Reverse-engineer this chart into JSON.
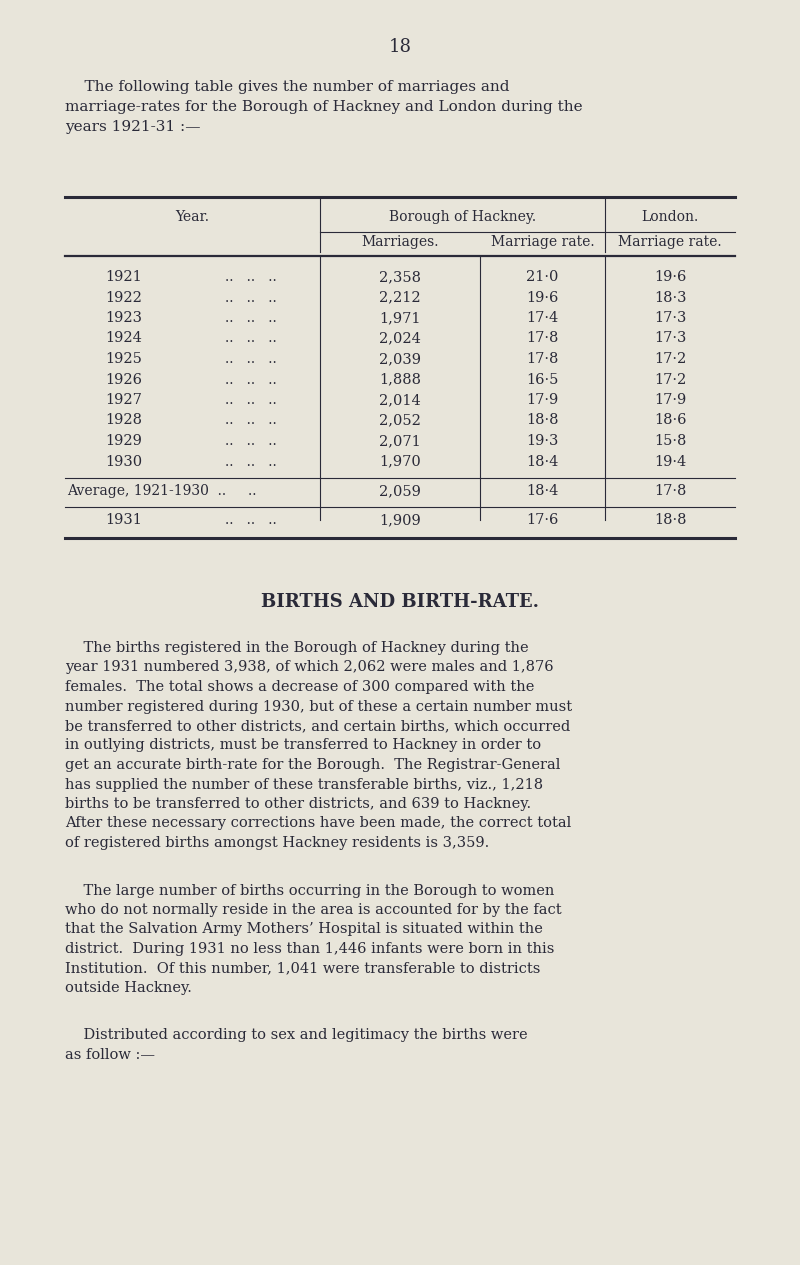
{
  "page_number": "18",
  "bg_color": "#e8e5da",
  "text_color": "#2a2a38",
  "intro_line1": "    The following table gives the number of marriages and",
  "intro_line2": "marriage-rates for the Borough of Hackney and London during the",
  "intro_line3": "years 1921-31 :—",
  "table_data": [
    [
      "1921",
      "2,358",
      "21·0",
      "19·6"
    ],
    [
      "1922",
      "2,212",
      "19·6",
      "18·3"
    ],
    [
      "1923",
      "1,971",
      "17·4",
      "17·3"
    ],
    [
      "1924",
      "2,024",
      "17·8",
      "17·3"
    ],
    [
      "1925",
      "2,039",
      "17·8",
      "17·2"
    ],
    [
      "1926",
      "1,888",
      "16·5",
      "17·2"
    ],
    [
      "1927",
      "2,014",
      "17·9",
      "17·9"
    ],
    [
      "1928",
      "2,052",
      "18·8",
      "18·6"
    ],
    [
      "1929",
      "2,071",
      "19·3",
      "15·8"
    ],
    [
      "1930",
      "1,970",
      "18·4",
      "19·4"
    ]
  ],
  "avg_row": [
    "Average, 1921-1930  ..     ..",
    "2,059",
    "18·4",
    "17·8"
  ],
  "row_1931": [
    "1931   ..   ..   ..",
    "1,909",
    "17·6",
    "18·8"
  ],
  "section_title": "BIRTHS AND BIRTH-RATE.",
  "para1_lines": [
    "    The births registered in the Borough of Hackney during the",
    "year 1931 numbered 3,938, of which 2,062 were males and 1,876",
    "females.  The total shows a decrease of 300 compared with the",
    "number registered during 1930, but of these a certain number must",
    "be transferred to other districts, and certain births, which occurred",
    "in outlying districts, must be transferred to Hackney in order to",
    "get an accurate birth-rate for the Borough.  The Registrar-General",
    "has supplied the number of these transferable births, viz., 1,218",
    "births to be transferred to other districts, and 639 to Hackney.",
    "After these necessary corrections have been made, the correct total",
    "of registered births amongst Hackney residents is 3,359."
  ],
  "para2_lines": [
    "    The large number of births occurring in the Borough to women",
    "who do not normally reside in the area is accounted for by the fact",
    "that the Salvation Army Mothers’ Hospital is situated within the",
    "district.  During 1931 no less than 1,446 infants were born in this",
    "Institution.  Of this number, 1,041 were transferable to districts",
    "outside Hackney."
  ],
  "para3_lines": [
    "    Distributed according to sex and legitimacy the births were",
    "as follow :—"
  ]
}
